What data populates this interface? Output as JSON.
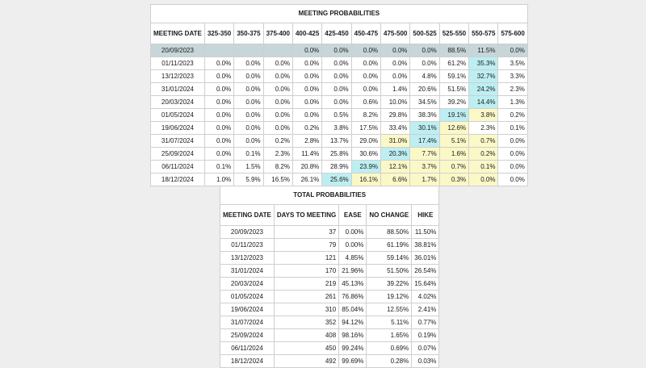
{
  "colors": {
    "current_row": "#c7d6d9",
    "max_cell": "#bdeef2",
    "adjacent_cell": "#fbf8c8"
  },
  "meeting": {
    "title": "MEETING PROBABILITIES",
    "headers": [
      "MEETING DATE",
      "325-350",
      "350-375",
      "375-400",
      "400-425",
      "425-450",
      "450-475",
      "475-500",
      "500-525",
      "525-550",
      "550-575",
      "575-600"
    ],
    "rows": [
      [
        "20/09/2023",
        "",
        "",
        "",
        "0.0%",
        "0.0%",
        "0.0%",
        "0.0%",
        "0.0%",
        "88.5%",
        "11.5%",
        "0.0%"
      ],
      [
        "01/11/2023",
        "0.0%",
        "0.0%",
        "0.0%",
        "0.0%",
        "0.0%",
        "0.0%",
        "0.0%",
        "0.0%",
        "61.2%",
        "35.3%",
        "3.5%"
      ],
      [
        "13/12/2023",
        "0.0%",
        "0.0%",
        "0.0%",
        "0.0%",
        "0.0%",
        "0.0%",
        "0.0%",
        "4.8%",
        "59.1%",
        "32.7%",
        "3.3%"
      ],
      [
        "31/01/2024",
        "0.0%",
        "0.0%",
        "0.0%",
        "0.0%",
        "0.0%",
        "0.0%",
        "1.4%",
        "20.6%",
        "51.5%",
        "24.2%",
        "2.3%"
      ],
      [
        "20/03/2024",
        "0.0%",
        "0.0%",
        "0.0%",
        "0.0%",
        "0.0%",
        "0.6%",
        "10.0%",
        "34.5%",
        "39.2%",
        "14.4%",
        "1.3%"
      ],
      [
        "01/05/2024",
        "0.0%",
        "0.0%",
        "0.0%",
        "0.0%",
        "0.5%",
        "8.2%",
        "29.8%",
        "38.3%",
        "19.1%",
        "3.8%",
        "0.2%"
      ],
      [
        "19/06/2024",
        "0.0%",
        "0.0%",
        "0.0%",
        "0.2%",
        "3.8%",
        "17.5%",
        "33.4%",
        "30.1%",
        "12.6%",
        "2.3%",
        "0.1%"
      ],
      [
        "31/07/2024",
        "0.0%",
        "0.0%",
        "0.2%",
        "2.8%",
        "13.7%",
        "29.0%",
        "31.0%",
        "17.4%",
        "5.1%",
        "0.7%",
        "0.0%"
      ],
      [
        "25/09/2024",
        "0.0%",
        "0.1%",
        "2.3%",
        "11.4%",
        "25.8%",
        "30.6%",
        "20.3%",
        "7.7%",
        "1.6%",
        "0.2%",
        "0.0%"
      ],
      [
        "06/11/2024",
        "0.1%",
        "1.5%",
        "8.2%",
        "20.8%",
        "28.9%",
        "23.9%",
        "12.1%",
        "3.7%",
        "0.7%",
        "0.1%",
        "0.0%"
      ],
      [
        "18/12/2024",
        "1.0%",
        "5.9%",
        "16.5%",
        "26.1%",
        "25.6%",
        "16.1%",
        "6.6%",
        "1.7%",
        "0.3%",
        "0.0%",
        "0.0%"
      ]
    ],
    "max_col": [
      9,
      9,
      9,
      9,
      9,
      8,
      7,
      7,
      6,
      5,
      4
    ],
    "adjacent": [
      [],
      [],
      [],
      [],
      [],
      [
        9
      ],
      [
        8
      ],
      [
        6,
        8,
        9
      ],
      [
        7,
        8,
        9
      ],
      [
        6,
        7,
        8,
        9
      ],
      [
        5,
        6,
        7,
        8,
        9
      ]
    ]
  },
  "total": {
    "title": "TOTAL PROBABILITIES",
    "headers": [
      "MEETING DATE",
      "DAYS TO MEETING",
      "EASE",
      "NO CHANGE",
      "HIKE"
    ],
    "rows": [
      [
        "20/09/2023",
        "37",
        "0.00%",
        "88.50%",
        "11.50%"
      ],
      [
        "01/11/2023",
        "79",
        "0.00%",
        "61.19%",
        "38.81%"
      ],
      [
        "13/12/2023",
        "121",
        "4.85%",
        "59.14%",
        "36.01%"
      ],
      [
        "31/01/2024",
        "170",
        "21.96%",
        "51.50%",
        "26.54%"
      ],
      [
        "20/03/2024",
        "219",
        "45.13%",
        "39.22%",
        "15.64%"
      ],
      [
        "01/05/2024",
        "261",
        "76.86%",
        "19.12%",
        "4.02%"
      ],
      [
        "19/06/2024",
        "310",
        "85.04%",
        "12.55%",
        "2.41%"
      ],
      [
        "31/07/2024",
        "352",
        "94.12%",
        "5.11%",
        "0.77%"
      ],
      [
        "25/09/2024",
        "408",
        "98.16%",
        "1.65%",
        "0.19%"
      ],
      [
        "06/11/2024",
        "450",
        "99.24%",
        "0.69%",
        "0.07%"
      ],
      [
        "18/12/2024",
        "492",
        "99.69%",
        "0.28%",
        "0.03%"
      ]
    ]
  }
}
